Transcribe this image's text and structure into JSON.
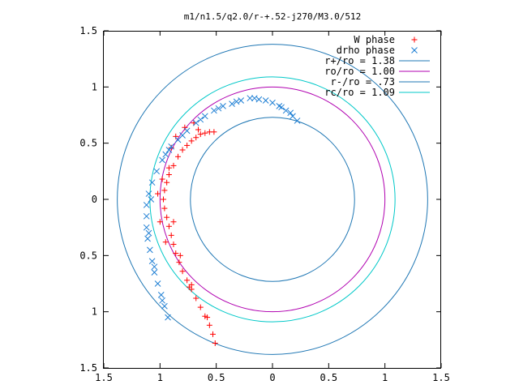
{
  "chart_data": {
    "type": "scatter",
    "title": "m1/n1.5/q2.0/r-+.52-j270/M3.0/512",
    "xlabel": "",
    "ylabel": "",
    "xlim": [
      -1.5,
      1.5
    ],
    "ylim": [
      -1.5,
      1.5
    ],
    "x_ticks": [
      -1.5,
      -1,
      -0.5,
      0,
      0.5,
      1,
      1.5
    ],
    "y_ticks": [
      -1.5,
      -1,
      -0.5,
      0,
      0.5,
      1,
      1.5
    ],
    "x_tick_labels": [
      "1.5",
      "1",
      "0.5",
      "0",
      "0.5",
      "1",
      "1.5"
    ],
    "y_tick_labels": [
      "1.5",
      "1",
      "0.5",
      "0",
      "0.5",
      "1",
      "1.5"
    ],
    "grid": false,
    "legend_position": "top-right",
    "series": [
      {
        "name": "W phase",
        "kind": "points",
        "marker": "+",
        "color": "#ff0000",
        "points": [
          [
            -0.52,
            0.6
          ],
          [
            -0.56,
            0.6
          ],
          [
            -0.6,
            0.59
          ],
          [
            -0.64,
            0.58
          ],
          [
            -0.68,
            0.55
          ],
          [
            -0.72,
            0.52
          ],
          [
            -0.76,
            0.48
          ],
          [
            -0.8,
            0.44
          ],
          [
            -0.84,
            0.38
          ],
          [
            -0.88,
            0.3
          ],
          [
            -0.92,
            0.22
          ],
          [
            -0.94,
            0.15
          ],
          [
            -0.96,
            0.08
          ],
          [
            -0.97,
            0.0
          ],
          [
            -0.96,
            -0.08
          ],
          [
            -0.94,
            -0.16
          ],
          [
            -0.92,
            -0.24
          ],
          [
            -0.9,
            -0.32
          ],
          [
            -0.88,
            -0.4
          ],
          [
            -0.86,
            -0.48
          ],
          [
            -0.83,
            -0.56
          ],
          [
            -0.8,
            -0.64
          ],
          [
            -0.76,
            -0.72
          ],
          [
            -0.72,
            -0.8
          ],
          [
            -0.68,
            -0.88
          ],
          [
            -0.64,
            -0.96
          ],
          [
            -0.6,
            -1.04
          ],
          [
            -0.56,
            -1.12
          ],
          [
            -0.53,
            -1.2
          ],
          [
            -0.51,
            -1.28
          ],
          [
            -0.7,
            0.68
          ],
          [
            -0.78,
            0.64
          ],
          [
            -0.86,
            0.56
          ],
          [
            -0.9,
            0.46
          ],
          [
            -0.98,
            0.18
          ],
          [
            -1.02,
            0.05
          ],
          [
            -1.0,
            -0.2
          ],
          [
            -0.95,
            -0.38
          ],
          [
            -0.74,
            -0.78
          ],
          [
            -0.82,
            -0.5
          ],
          [
            -0.66,
            0.62
          ],
          [
            -0.92,
            0.28
          ],
          [
            -0.88,
            -0.2
          ],
          [
            -0.72,
            -0.76
          ],
          [
            -0.58,
            -1.05
          ]
        ]
      },
      {
        "name": "drho phase",
        "kind": "points",
        "marker": "x",
        "color": "#1f7fd4",
        "points": [
          [
            0.22,
            0.7
          ],
          [
            0.18,
            0.74
          ],
          [
            0.12,
            0.79
          ],
          [
            0.06,
            0.83
          ],
          [
            0.0,
            0.86
          ],
          [
            -0.06,
            0.88
          ],
          [
            -0.12,
            0.89
          ],
          [
            -0.2,
            0.9
          ],
          [
            -0.28,
            0.88
          ],
          [
            -0.36,
            0.85
          ],
          [
            -0.44,
            0.83
          ],
          [
            -0.52,
            0.79
          ],
          [
            -0.6,
            0.74
          ],
          [
            -0.68,
            0.68
          ],
          [
            -0.76,
            0.61
          ],
          [
            -0.84,
            0.53
          ],
          [
            -0.92,
            0.44
          ],
          [
            -0.98,
            0.35
          ],
          [
            -1.03,
            0.25
          ],
          [
            -1.07,
            0.15
          ],
          [
            -1.1,
            0.05
          ],
          [
            -1.12,
            -0.05
          ],
          [
            -1.12,
            -0.15
          ],
          [
            -1.12,
            -0.25
          ],
          [
            -1.11,
            -0.35
          ],
          [
            -1.09,
            -0.45
          ],
          [
            -1.07,
            -0.55
          ],
          [
            -1.05,
            -0.65
          ],
          [
            -1.02,
            -0.75
          ],
          [
            -0.99,
            -0.85
          ],
          [
            -0.96,
            -0.95
          ],
          [
            -0.93,
            -1.05
          ],
          [
            -0.98,
            -0.9
          ],
          [
            -1.05,
            -0.6
          ],
          [
            -1.1,
            -0.3
          ],
          [
            -1.08,
            0.0
          ],
          [
            -0.95,
            0.4
          ],
          [
            -0.8,
            0.57
          ],
          [
            -0.64,
            0.71
          ],
          [
            -0.48,
            0.81
          ],
          [
            -0.32,
            0.87
          ],
          [
            -0.16,
            0.9
          ],
          [
            0.08,
            0.82
          ],
          [
            0.16,
            0.77
          ],
          [
            -0.9,
            0.47
          ]
        ]
      },
      {
        "name": "r+/ro = 1.38",
        "kind": "circle",
        "r": 1.38,
        "color": "#1f77b4"
      },
      {
        "name": "ro/ro = 1.00",
        "kind": "circle",
        "r": 1.0,
        "color": "#b000b0"
      },
      {
        "name": "r-/ro = .73",
        "kind": "circle",
        "r": 0.73,
        "color": "#1f77b4"
      },
      {
        "name": "rc/ro = 1.09",
        "kind": "circle",
        "r": 1.09,
        "color": "#00c8c8"
      }
    ]
  }
}
